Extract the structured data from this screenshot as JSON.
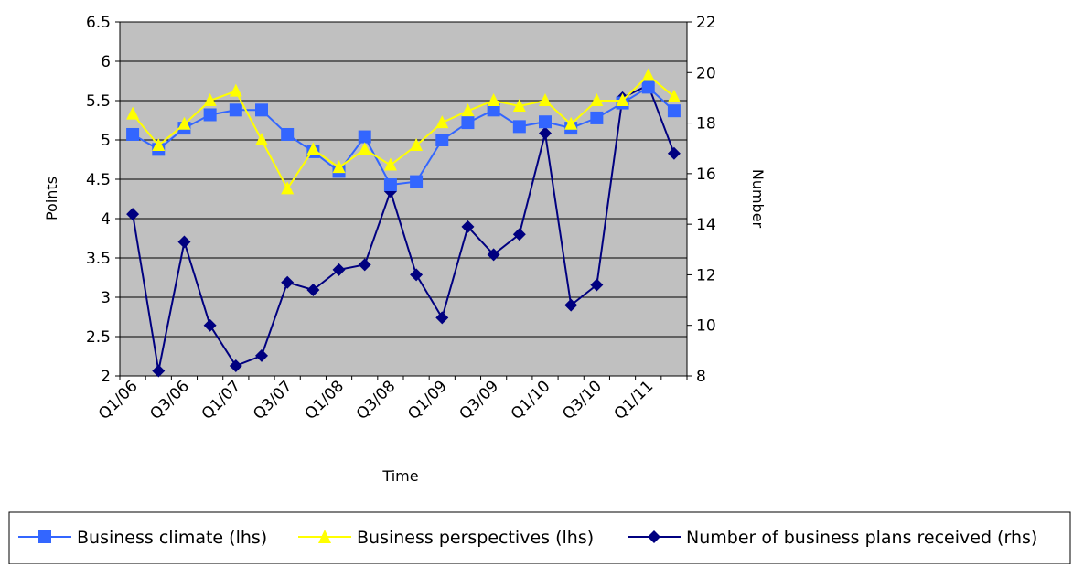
{
  "chart_data": {
    "type": "line",
    "title": "",
    "xlabel": "Time",
    "ylabel_left": "Points",
    "ylabel_right": "Number",
    "ylim_left": [
      2,
      6.5
    ],
    "ylim_right": [
      8,
      22
    ],
    "yticks_left": [
      "2",
      "2.5",
      "3",
      "3.5",
      "4",
      "4.5",
      "5",
      "5.5",
      "6",
      "6.5"
    ],
    "yticks_right": [
      "8",
      "10",
      "12",
      "14",
      "16",
      "18",
      "20",
      "22"
    ],
    "x": [
      "Q1/06",
      "Q2/06",
      "Q3/06",
      "Q4/06",
      "Q1/07",
      "Q2/07",
      "Q3/07",
      "Q4/07",
      "Q1/08",
      "Q2/08",
      "Q3/08",
      "Q4/08",
      "Q1/09",
      "Q2/09",
      "Q3/09",
      "Q4/09",
      "Q1/10",
      "Q2/10",
      "Q3/10",
      "Q4/10",
      "Q1/11",
      "Q2/11"
    ],
    "x_tick_labels": [
      "Q1/06",
      "Q3/06",
      "Q1/07",
      "Q3/07",
      "Q1/08",
      "Q3/08",
      "Q1/09",
      "Q3/09",
      "Q1/10",
      "Q3/10",
      "Q1/11"
    ],
    "series": [
      {
        "name": "Business climate (lhs)",
        "axis": "left",
        "color": "#3366ff",
        "marker": "square",
        "values": [
          5.07,
          4.88,
          5.15,
          5.32,
          5.38,
          5.38,
          5.07,
          4.85,
          4.6,
          5.04,
          4.43,
          4.47,
          5.0,
          5.22,
          5.38,
          5.17,
          5.23,
          5.15,
          5.28,
          5.47,
          5.67,
          5.37
        ]
      },
      {
        "name": "Business perspectives (lhs)",
        "axis": "left",
        "color": "#ffff00",
        "marker": "triangle",
        "values": [
          5.33,
          4.93,
          5.2,
          5.5,
          5.62,
          5.0,
          4.38,
          4.88,
          4.65,
          4.88,
          4.68,
          4.93,
          5.22,
          5.37,
          5.5,
          5.43,
          5.5,
          5.2,
          5.5,
          5.5,
          5.82,
          5.55
        ]
      },
      {
        "name": "Number of business plans received (rhs)",
        "axis": "right",
        "color": "#000080",
        "marker": "diamond",
        "values": [
          14.4,
          8.2,
          13.3,
          10.0,
          8.4,
          8.8,
          11.7,
          11.4,
          12.2,
          12.4,
          15.3,
          12.0,
          10.3,
          13.9,
          12.8,
          13.6,
          17.6,
          10.8,
          11.6,
          19.0,
          19.5,
          16.8
        ]
      }
    ],
    "grid": true,
    "legend_position": "bottom"
  },
  "colors": {
    "plot_background": "#c0c0c0",
    "gridline": "#000000"
  }
}
